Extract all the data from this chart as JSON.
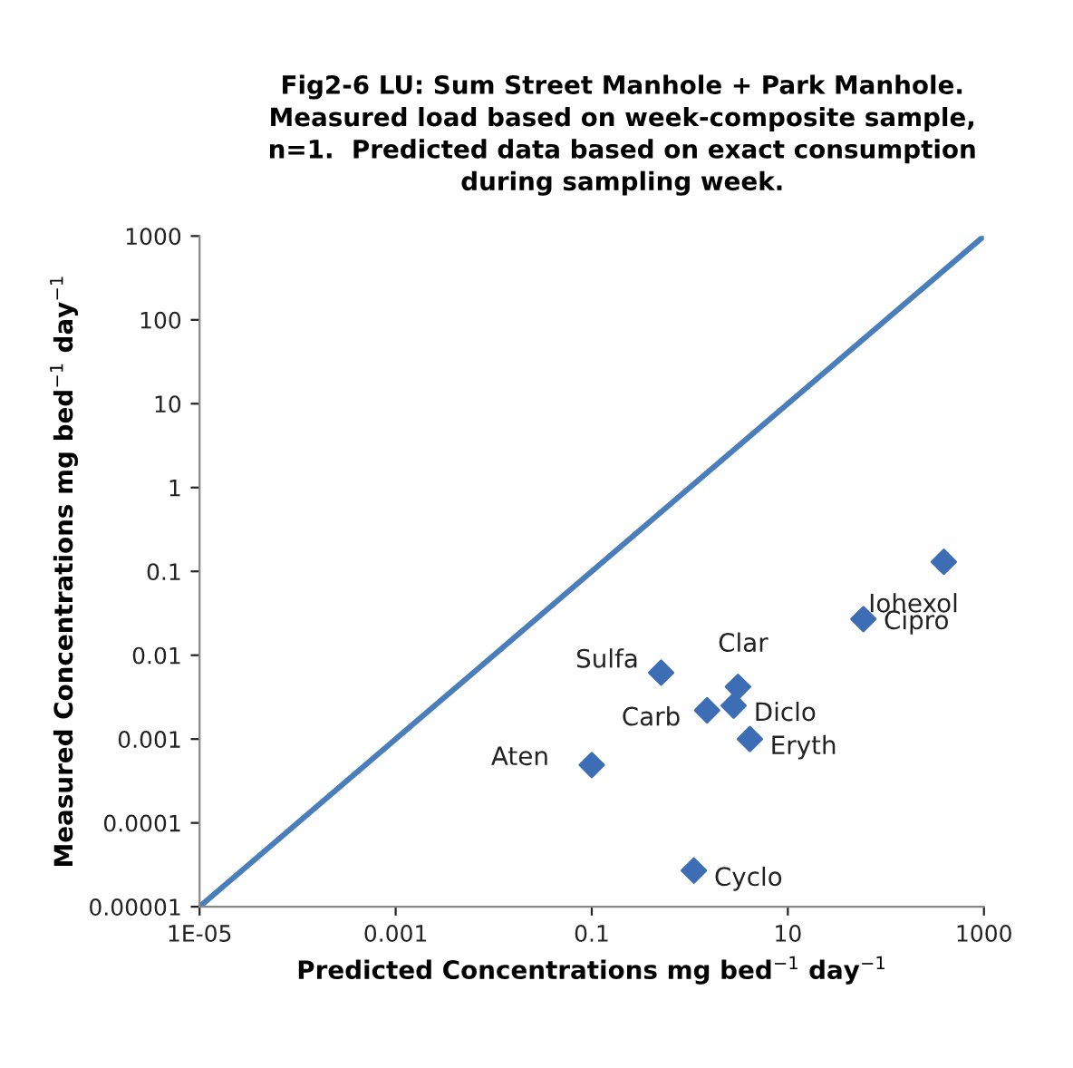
{
  "chart_data": {
    "type": "scatter",
    "title": "Fig2-6 LU: Sum Street Manhole + Park Manhole.\nMeasured load based on week-composite sample,\nn=1.  Predicted data based on exact consumption\nduring sampling week.",
    "xlabel": "Predicted Concentrations mg bed$^{−1}$ day$^{−1}$",
    "ylabel": "Measured Concentrations mg bed$^{−1}$ day$^{−1}$",
    "log": "xy",
    "xlim": [
      1e-05,
      1000
    ],
    "ylim": [
      1e-05,
      1000
    ],
    "xticks": [
      {
        "value": 1e-05,
        "label": "1E-05"
      },
      0.001,
      0.1,
      10,
      1000
    ],
    "yticks": [
      {
        "value": 1e-05,
        "label": "0.00001"
      },
      0.0001,
      0.001,
      0.01,
      0.1,
      1,
      10,
      100,
      1000
    ],
    "grid": false,
    "legend": false,
    "series": [
      {
        "type": "line",
        "color": "#4a7ebb",
        "x": [
          1e-05,
          1000
        ],
        "values": [
          1e-05,
          1000
        ],
        "marker": "none"
      },
      {
        "color": "#3d6db5",
        "marker": "diamond",
        "x": [
          390,
          59,
          0.51,
          3.1,
          2.8,
          1.5,
          4.1,
          0.1,
          1.1
        ],
        "values": [
          0.13,
          0.027,
          0.0062,
          0.0042,
          0.0025,
          0.0022,
          0.001,
          0.00049,
          2.7e-05
        ]
      }
    ],
    "annotations": [
      {
        "text": "Iohexol",
        "x": 390,
        "y": 0.13
      },
      {
        "text": "Cipro",
        "x": 59,
        "y": 0.027
      },
      {
        "text": "Sulfa",
        "x": 0.51,
        "y": 0.0062
      },
      {
        "text": "Clar",
        "x": 3.1,
        "y": 0.0042
      },
      {
        "text": "Diclo",
        "x": 2.8,
        "y": 0.0025
      },
      {
        "text": "Carb",
        "x": 1.5,
        "y": 0.0022
      },
      {
        "text": "Eryth",
        "x": 4.1,
        "y": 0.001
      },
      {
        "text": "Aten",
        "x": 0.1,
        "y": 0.00049
      },
      {
        "text": "Cyclo",
        "x": 1.1,
        "y": 2.7e-05
      }
    ]
  }
}
